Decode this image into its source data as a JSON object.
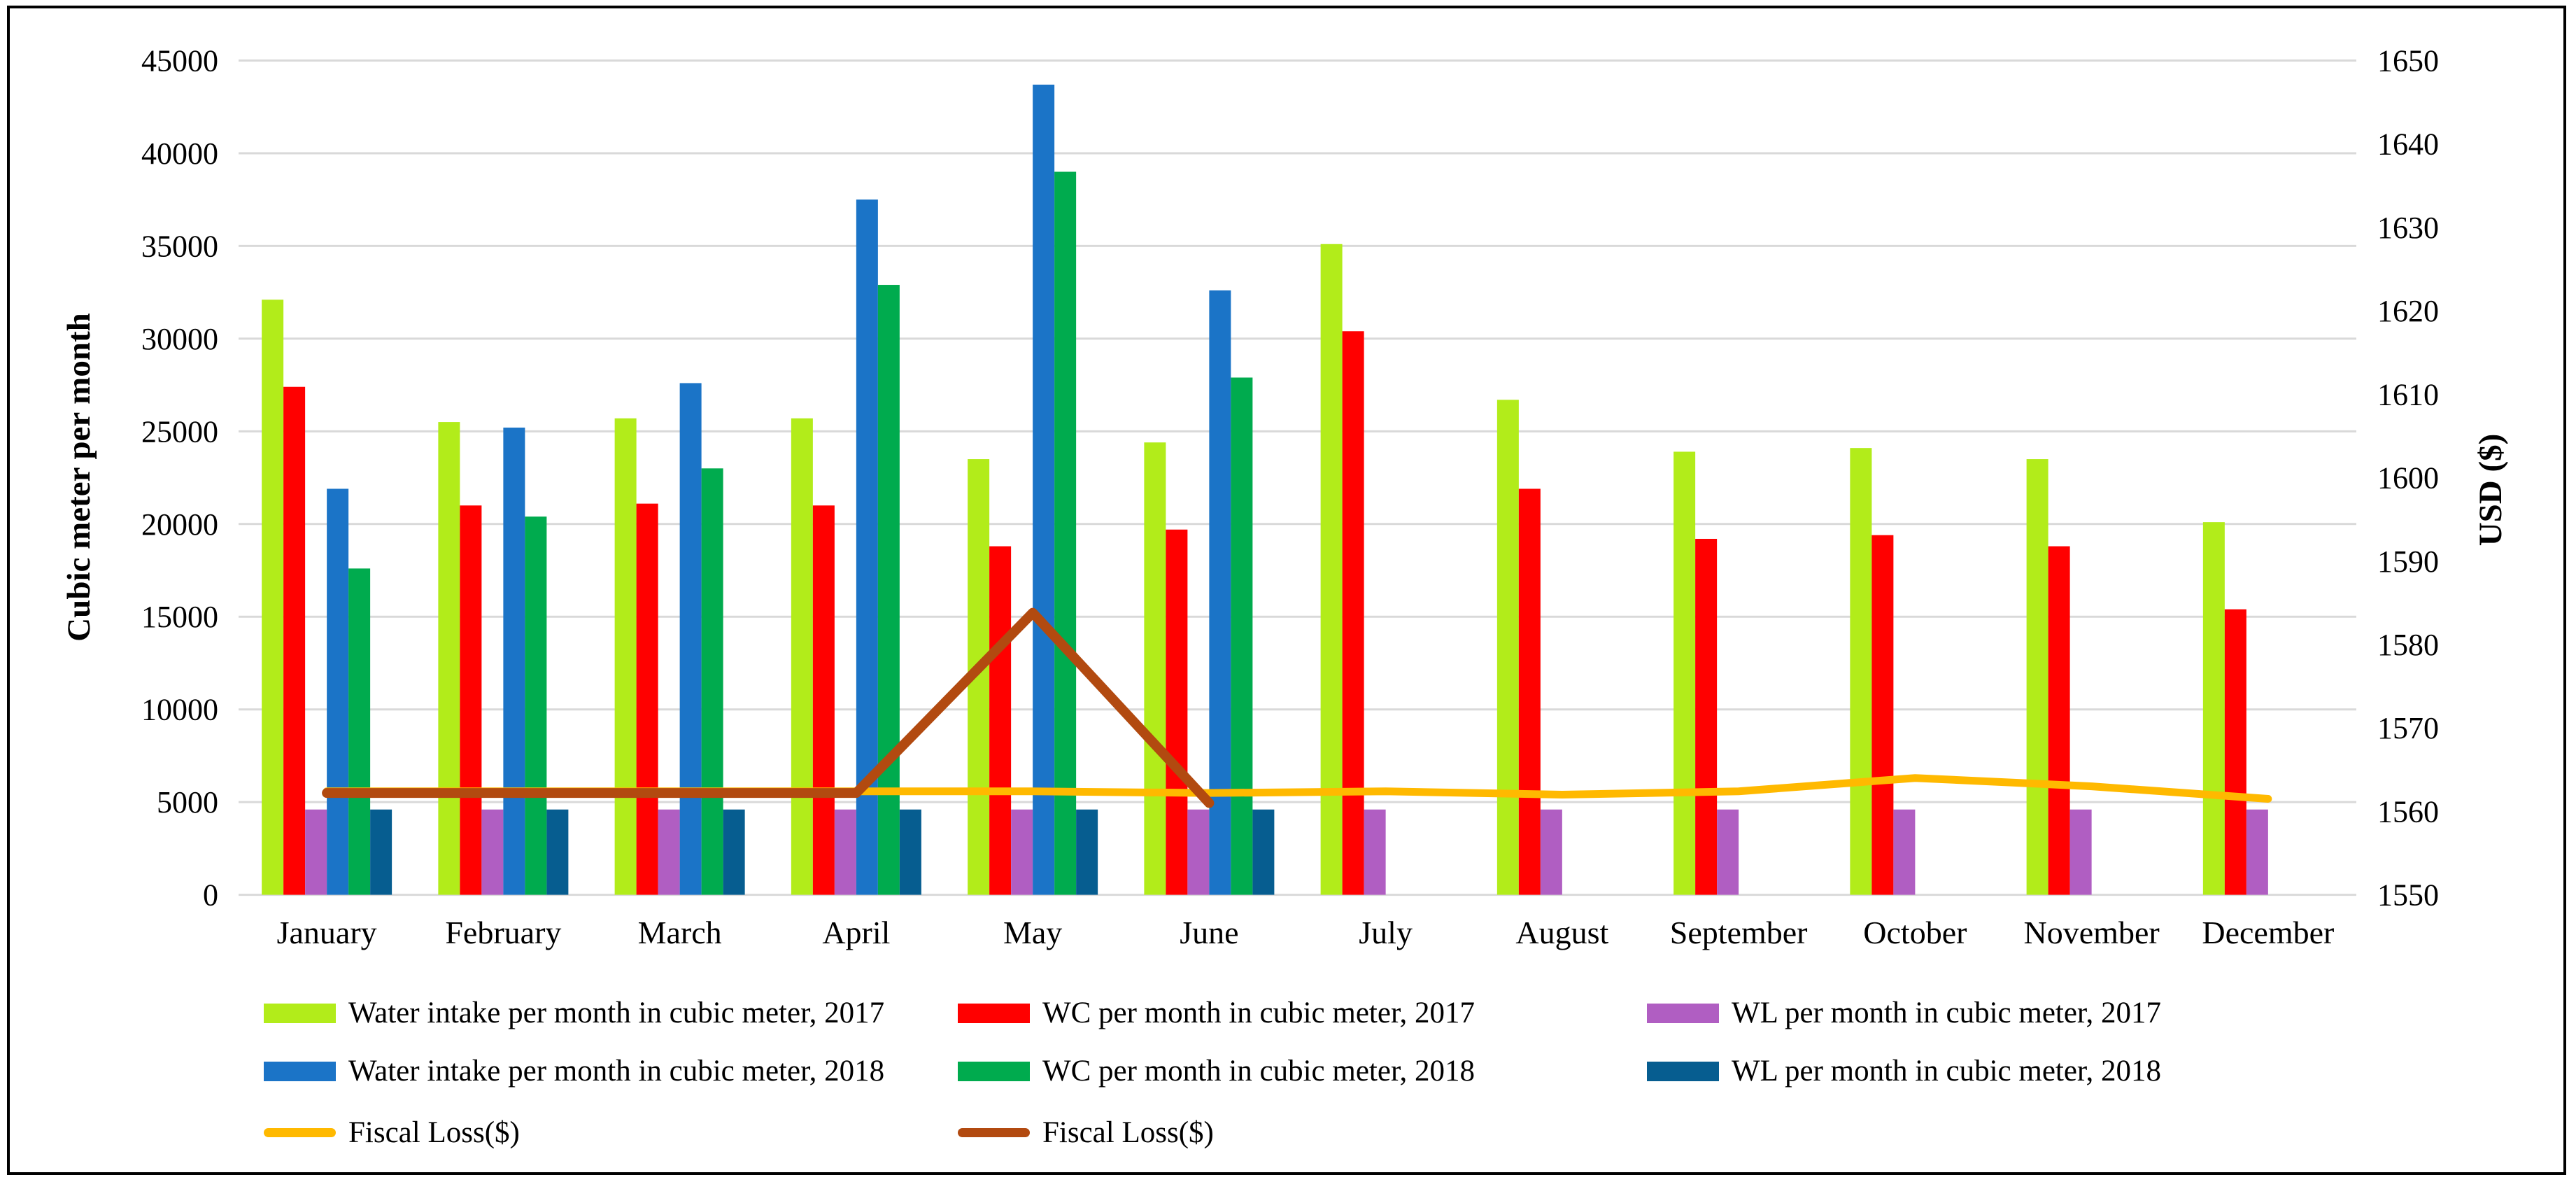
{
  "chart_data": {
    "type": "bar-line-combo",
    "categories": [
      "January",
      "February",
      "March",
      "April",
      "May",
      "June",
      "July",
      "August",
      "September",
      "October",
      "November",
      "December"
    ],
    "left_axis": {
      "label": "Cubic meter per month",
      "min": 0,
      "max": 45000,
      "step": 5000
    },
    "right_axis": {
      "label": "USD ($)",
      "min": 1550,
      "max": 1650,
      "step": 10
    },
    "grid": true,
    "legend_position": "bottom",
    "bar_series": [
      {
        "name": "Water intake per month in cubic meter, 2017",
        "color": "#B2EC1A",
        "values": [
          32100,
          25500,
          25700,
          25700,
          23500,
          24400,
          35100,
          26700,
          23900,
          24100,
          23500,
          20100
        ]
      },
      {
        "name": "WC per month in cubic meter, 2017",
        "color": "#FF0000",
        "values": [
          27400,
          21000,
          21100,
          21000,
          18800,
          19700,
          30400,
          21900,
          19200,
          19400,
          18800,
          15400
        ]
      },
      {
        "name": "WL per month in cubic meter, 2017",
        "color": "#B05EC2",
        "values": [
          4600,
          4600,
          4600,
          4600,
          4600,
          4600,
          4600,
          4600,
          4600,
          4600,
          4600,
          4600
        ]
      },
      {
        "name": "Water intake per month in cubic meter, 2018",
        "color": "#1B74C7",
        "values": [
          21900,
          25200,
          27600,
          37500,
          43700,
          32600,
          null,
          null,
          null,
          null,
          null,
          null
        ]
      },
      {
        "name": "WC per month in cubic meter, 2018",
        "color": "#00AB4E",
        "values": [
          17600,
          20400,
          23000,
          32900,
          39000,
          27900,
          null,
          null,
          null,
          null,
          null,
          null
        ]
      },
      {
        "name": "WL per month in cubic meter, 2018",
        "color": "#065D90",
        "values": [
          4600,
          4600,
          4600,
          4600,
          4600,
          4600,
          null,
          null,
          null,
          null,
          null,
          null
        ]
      }
    ],
    "line_series": [
      {
        "name": "Fiscal Loss($)",
        "color": "#FFB900",
        "axis": "right",
        "values": [
          1562.4,
          1562.4,
          1562.4,
          1562.4,
          1562.4,
          1562.2,
          1562.4,
          1562.0,
          1562.4,
          1564.0,
          1563.0,
          1561.5
        ]
      },
      {
        "name": "Fiscal Loss($)",
        "color": "#B24A10",
        "axis": "right",
        "values": [
          1562.2,
          1562.2,
          1562.2,
          1562.2,
          1583.8,
          1561.0,
          null,
          null,
          null,
          null,
          null,
          null
        ]
      }
    ]
  }
}
